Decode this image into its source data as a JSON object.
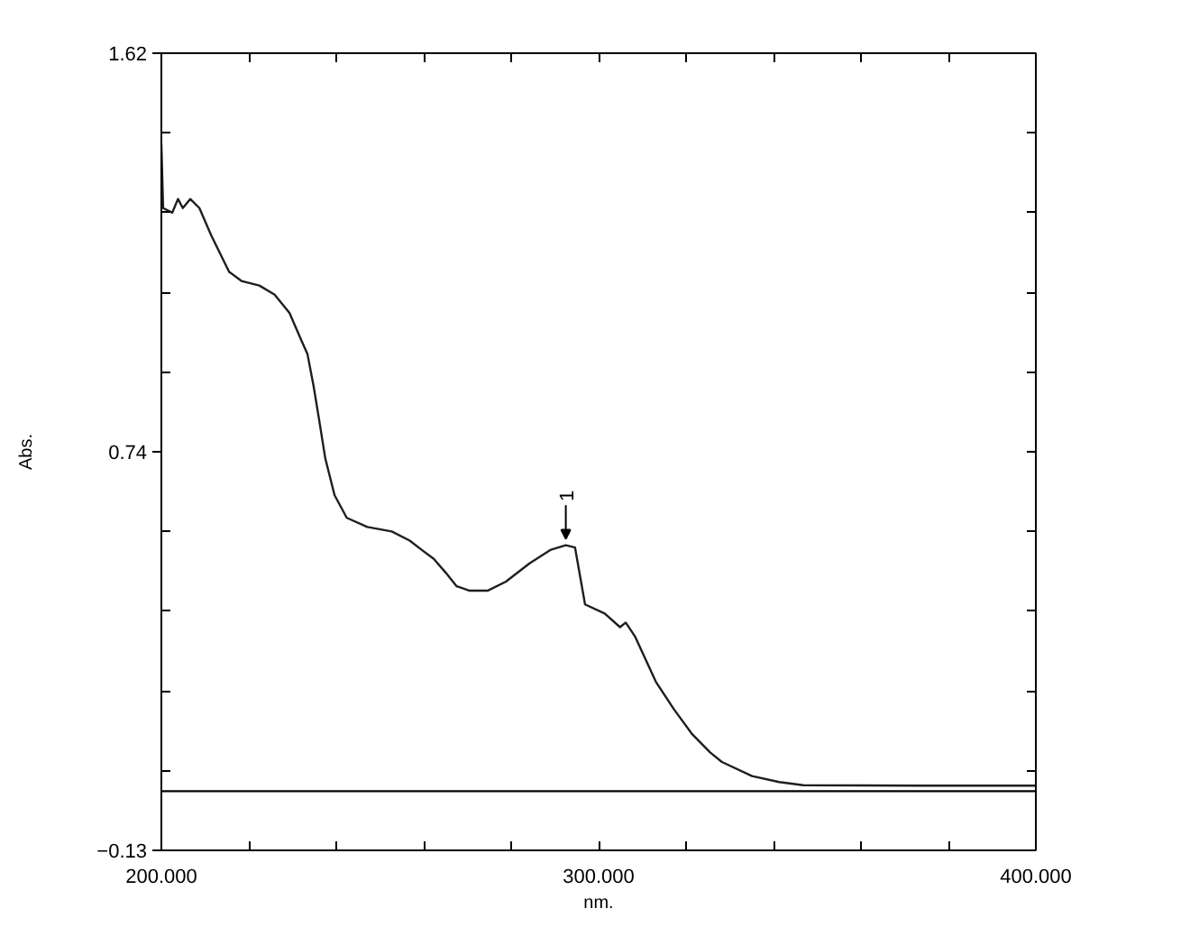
{
  "chart_data": {
    "type": "line",
    "xlabel": "nm.",
    "ylabel": "Abs.",
    "x": [
      200,
      200.4,
      202.5,
      203.8,
      204.9,
      206.6,
      208.7,
      211.4,
      215.5,
      218.3,
      222.4,
      225.9,
      229.3,
      232.0,
      233.4,
      234.8,
      236.0,
      237.5,
      239.6,
      242.4,
      247.1,
      252.7,
      256.8,
      259.5,
      262.3,
      265.0,
      267.5,
      270.5,
      274.6,
      278.8,
      284.2,
      289.1,
      292.5,
      294.6,
      296.9,
      301.4,
      304.9,
      306.2,
      308.3,
      313.1,
      317.2,
      321.4,
      325.5,
      328.2,
      335.1,
      341.3,
      346.8,
      376.4,
      400
    ],
    "series": [
      {
        "color": "#1e1e1e",
        "values": [
          1.42,
          1.28,
          1.27,
          1.3,
          1.28,
          1.3,
          1.28,
          1.22,
          1.14,
          1.12,
          1.11,
          1.09,
          1.05,
          0.99,
          0.96,
          0.89,
          0.82,
          0.73,
          0.65,
          0.6,
          0.58,
          0.57,
          0.55,
          0.53,
          0.51,
          0.48,
          0.45,
          0.44,
          0.44,
          0.46,
          0.5,
          0.53,
          0.54,
          0.535,
          0.41,
          0.39,
          0.36,
          0.37,
          0.34,
          0.24,
          0.18,
          0.125,
          0.085,
          0.064,
          0.033,
          0.02,
          0.013,
          0.012,
          0.012
        ]
      }
    ],
    "xlim": [
      200,
      400
    ],
    "ylim": [
      -0.13,
      1.62
    ],
    "xticks": [
      {
        "value": 200,
        "label": "200.000"
      },
      {
        "value": 220,
        "label": null
      },
      {
        "value": 240,
        "label": null
      },
      {
        "value": 260,
        "label": null
      },
      {
        "value": 280,
        "label": null
      },
      {
        "value": 300,
        "label": "300.000"
      },
      {
        "value": 320,
        "label": null
      },
      {
        "value": 340,
        "label": null
      },
      {
        "value": 360,
        "label": null
      },
      {
        "value": 380,
        "label": null
      },
      {
        "value": 400,
        "label": "400.000"
      }
    ],
    "yticks": [
      -0.13,
      {
        "value": 0.045,
        "label": null
      },
      {
        "value": 0.22,
        "label": null
      },
      {
        "value": 0.395,
        "label": null
      },
      {
        "value": 0.57,
        "label": null
      },
      {
        "value": 0.745,
        "label": "0.74"
      },
      {
        "value": 0.92,
        "label": null
      },
      {
        "value": 1.095,
        "label": null
      },
      {
        "value": 1.27,
        "label": null
      },
      {
        "value": 1.445,
        "label": null
      },
      1.62
    ],
    "ref_lines": [
      {
        "axis": "y",
        "value": 0,
        "color": "#000000"
      }
    ],
    "annotations": [
      {
        "text": "1",
        "x": 292.5,
        "y": 0.54
      }
    ],
    "grid": false,
    "line_style": "solid"
  }
}
